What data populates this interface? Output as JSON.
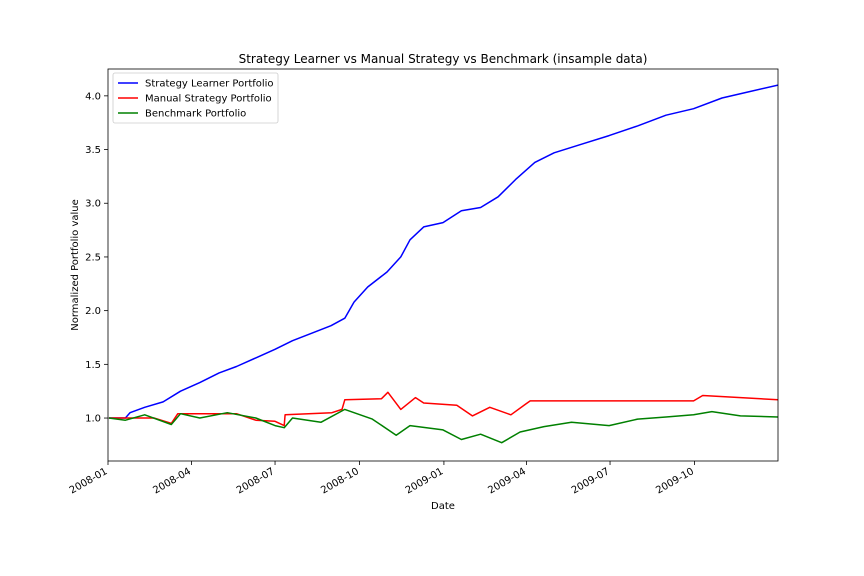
{
  "chart_data": {
    "type": "line",
    "title": "Strategy Learner vs Manual Strategy vs Benchmark (insample data)",
    "xlabel": "Date",
    "ylabel": "Normalized Portfolio value",
    "xlim": [
      "2008-01-01",
      "2009-12-31"
    ],
    "ylim": [
      0.6,
      4.25
    ],
    "x_ticks": [
      "2008-01",
      "2008-04",
      "2008-07",
      "2008-10",
      "2009-01",
      "2009-04",
      "2009-07",
      "2009-10"
    ],
    "y_ticks": [
      "1.0",
      "1.5",
      "2.0",
      "2.5",
      "3.0",
      "3.5",
      "4.0"
    ],
    "y_tick_values": [
      1.0,
      1.5,
      2.0,
      2.5,
      3.0,
      3.5,
      4.0
    ],
    "grid": false,
    "legend_position": "top-left",
    "series": [
      {
        "name": "Strategy Learner Portfolio",
        "color": "#0000ff",
        "points": [
          [
            "2008-01-02",
            1.0
          ],
          [
            "2008-01-20",
            1.0
          ],
          [
            "2008-01-25",
            1.05
          ],
          [
            "2008-02-10",
            1.1
          ],
          [
            "2008-03-01",
            1.15
          ],
          [
            "2008-03-20",
            1.25
          ],
          [
            "2008-04-10",
            1.33
          ],
          [
            "2008-05-01",
            1.42
          ],
          [
            "2008-05-20",
            1.48
          ],
          [
            "2008-06-10",
            1.56
          ],
          [
            "2008-07-01",
            1.64
          ],
          [
            "2008-07-20",
            1.72
          ],
          [
            "2008-08-10",
            1.79
          ],
          [
            "2008-08-31",
            1.86
          ],
          [
            "2008-09-15",
            1.93
          ],
          [
            "2008-09-25",
            2.08
          ],
          [
            "2008-10-10",
            2.22
          ],
          [
            "2008-10-31",
            2.36
          ],
          [
            "2008-11-15",
            2.5
          ],
          [
            "2008-11-25",
            2.66
          ],
          [
            "2008-12-10",
            2.78
          ],
          [
            "2008-12-31",
            2.82
          ],
          [
            "2009-01-20",
            2.93
          ],
          [
            "2009-02-10",
            2.96
          ],
          [
            "2009-03-01",
            3.06
          ],
          [
            "2009-03-20",
            3.22
          ],
          [
            "2009-04-10",
            3.38
          ],
          [
            "2009-05-01",
            3.47
          ],
          [
            "2009-05-31",
            3.55
          ],
          [
            "2009-06-30",
            3.63
          ],
          [
            "2009-07-31",
            3.72
          ],
          [
            "2009-08-31",
            3.82
          ],
          [
            "2009-09-30",
            3.88
          ],
          [
            "2009-10-31",
            3.98
          ],
          [
            "2009-11-30",
            4.04
          ],
          [
            "2009-12-31",
            4.1
          ]
        ]
      },
      {
        "name": "Manual Strategy Portfolio",
        "color": "#ff0000",
        "points": [
          [
            "2008-01-02",
            1.0
          ],
          [
            "2008-02-20",
            1.0
          ],
          [
            "2008-03-10",
            0.95
          ],
          [
            "2008-03-17",
            1.04
          ],
          [
            "2008-05-20",
            1.04
          ],
          [
            "2008-06-10",
            0.98
          ],
          [
            "2008-07-01",
            0.97
          ],
          [
            "2008-07-11",
            0.93
          ],
          [
            "2008-07-12",
            1.03
          ],
          [
            "2008-09-01",
            1.05
          ],
          [
            "2008-09-12",
            1.08
          ],
          [
            "2008-09-15",
            1.17
          ],
          [
            "2008-10-25",
            1.18
          ],
          [
            "2008-11-01",
            1.24
          ],
          [
            "2008-11-15",
            1.08
          ],
          [
            "2008-12-01",
            1.19
          ],
          [
            "2008-12-10",
            1.14
          ],
          [
            "2009-01-15",
            1.12
          ],
          [
            "2009-02-01",
            1.02
          ],
          [
            "2009-02-20",
            1.1
          ],
          [
            "2009-03-15",
            1.03
          ],
          [
            "2009-03-31",
            1.13
          ],
          [
            "2009-04-05",
            1.16
          ],
          [
            "2009-09-30",
            1.16
          ],
          [
            "2009-10-10",
            1.21
          ],
          [
            "2009-11-01",
            1.2
          ],
          [
            "2009-12-31",
            1.17
          ]
        ]
      },
      {
        "name": "Benchmark Portfolio",
        "color": "#008000",
        "points": [
          [
            "2008-01-02",
            1.0
          ],
          [
            "2008-01-20",
            0.98
          ],
          [
            "2008-02-10",
            1.03
          ],
          [
            "2008-03-10",
            0.94
          ],
          [
            "2008-03-20",
            1.04
          ],
          [
            "2008-04-10",
            1.0
          ],
          [
            "2008-05-10",
            1.05
          ],
          [
            "2008-06-10",
            1.0
          ],
          [
            "2008-07-01",
            0.93
          ],
          [
            "2008-07-11",
            0.91
          ],
          [
            "2008-07-20",
            1.0
          ],
          [
            "2008-08-20",
            0.96
          ],
          [
            "2008-09-15",
            1.08
          ],
          [
            "2008-10-15",
            0.99
          ],
          [
            "2008-11-10",
            0.84
          ],
          [
            "2008-11-25",
            0.93
          ],
          [
            "2008-12-31",
            0.89
          ],
          [
            "2009-01-20",
            0.8
          ],
          [
            "2009-02-10",
            0.85
          ],
          [
            "2009-03-05",
            0.77
          ],
          [
            "2009-03-25",
            0.87
          ],
          [
            "2009-04-20",
            0.92
          ],
          [
            "2009-05-20",
            0.96
          ],
          [
            "2009-06-30",
            0.93
          ],
          [
            "2009-07-31",
            0.99
          ],
          [
            "2009-08-31",
            1.01
          ],
          [
            "2009-09-30",
            1.03
          ],
          [
            "2009-10-20",
            1.06
          ],
          [
            "2009-11-20",
            1.02
          ],
          [
            "2009-12-31",
            1.01
          ]
        ]
      }
    ]
  }
}
